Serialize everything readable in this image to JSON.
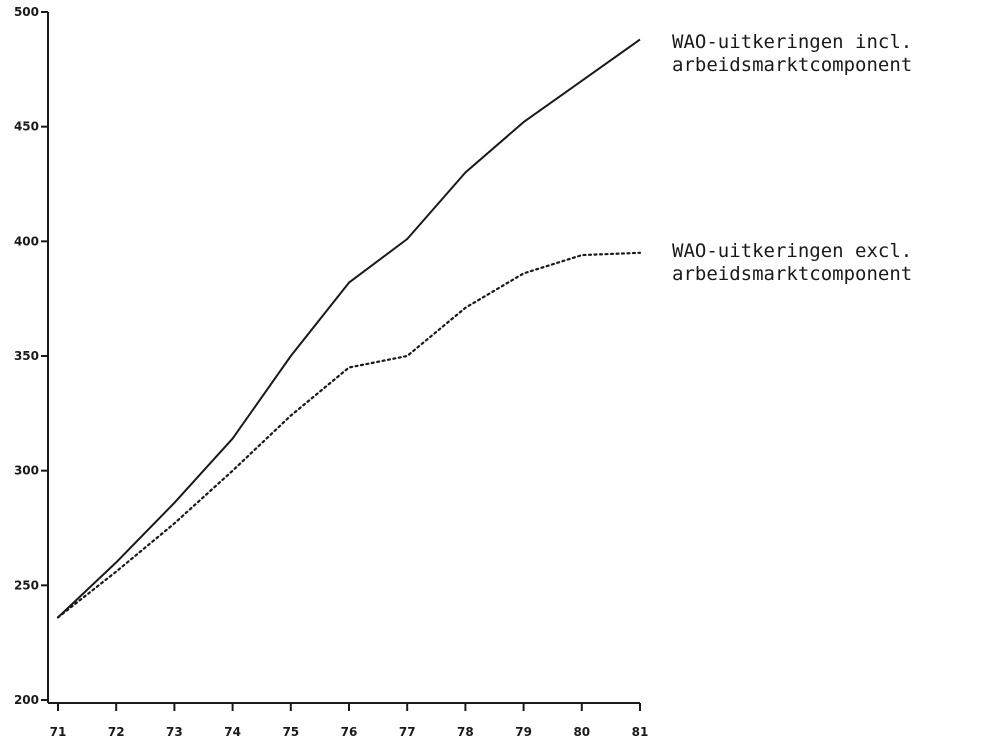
{
  "chart_data": {
    "type": "line",
    "title": "",
    "xlabel": "",
    "ylabel": "",
    "x": [
      "71",
      "72",
      "73",
      "74",
      "75",
      "76",
      "77",
      "78",
      "79",
      "80",
      "81"
    ],
    "ylim": [
      200,
      500
    ],
    "yticks": [
      "200",
      "250",
      "300",
      "350",
      "400",
      "450",
      "500"
    ],
    "grid": false,
    "legend_position": "right",
    "series": [
      {
        "name": "WAO-uitkeringen incl. arbeidsmarktcomponent",
        "label_lines": [
          "WAO-uitkeringen incl.",
          "arbeidsmarktcomponent"
        ],
        "style": "solid",
        "values": [
          236,
          260,
          286,
          314,
          350,
          382,
          401,
          430,
          452,
          470,
          488
        ]
      },
      {
        "name": "WAO-uitkeringen excl. arbeidsmarktcomponent",
        "label_lines": [
          "WAO-uitkeringen excl.",
          "arbeidsmarktcomponent"
        ],
        "style": "dotted",
        "values": [
          236,
          256,
          277,
          300,
          324,
          345,
          350,
          371,
          386,
          394,
          395
        ]
      }
    ]
  }
}
